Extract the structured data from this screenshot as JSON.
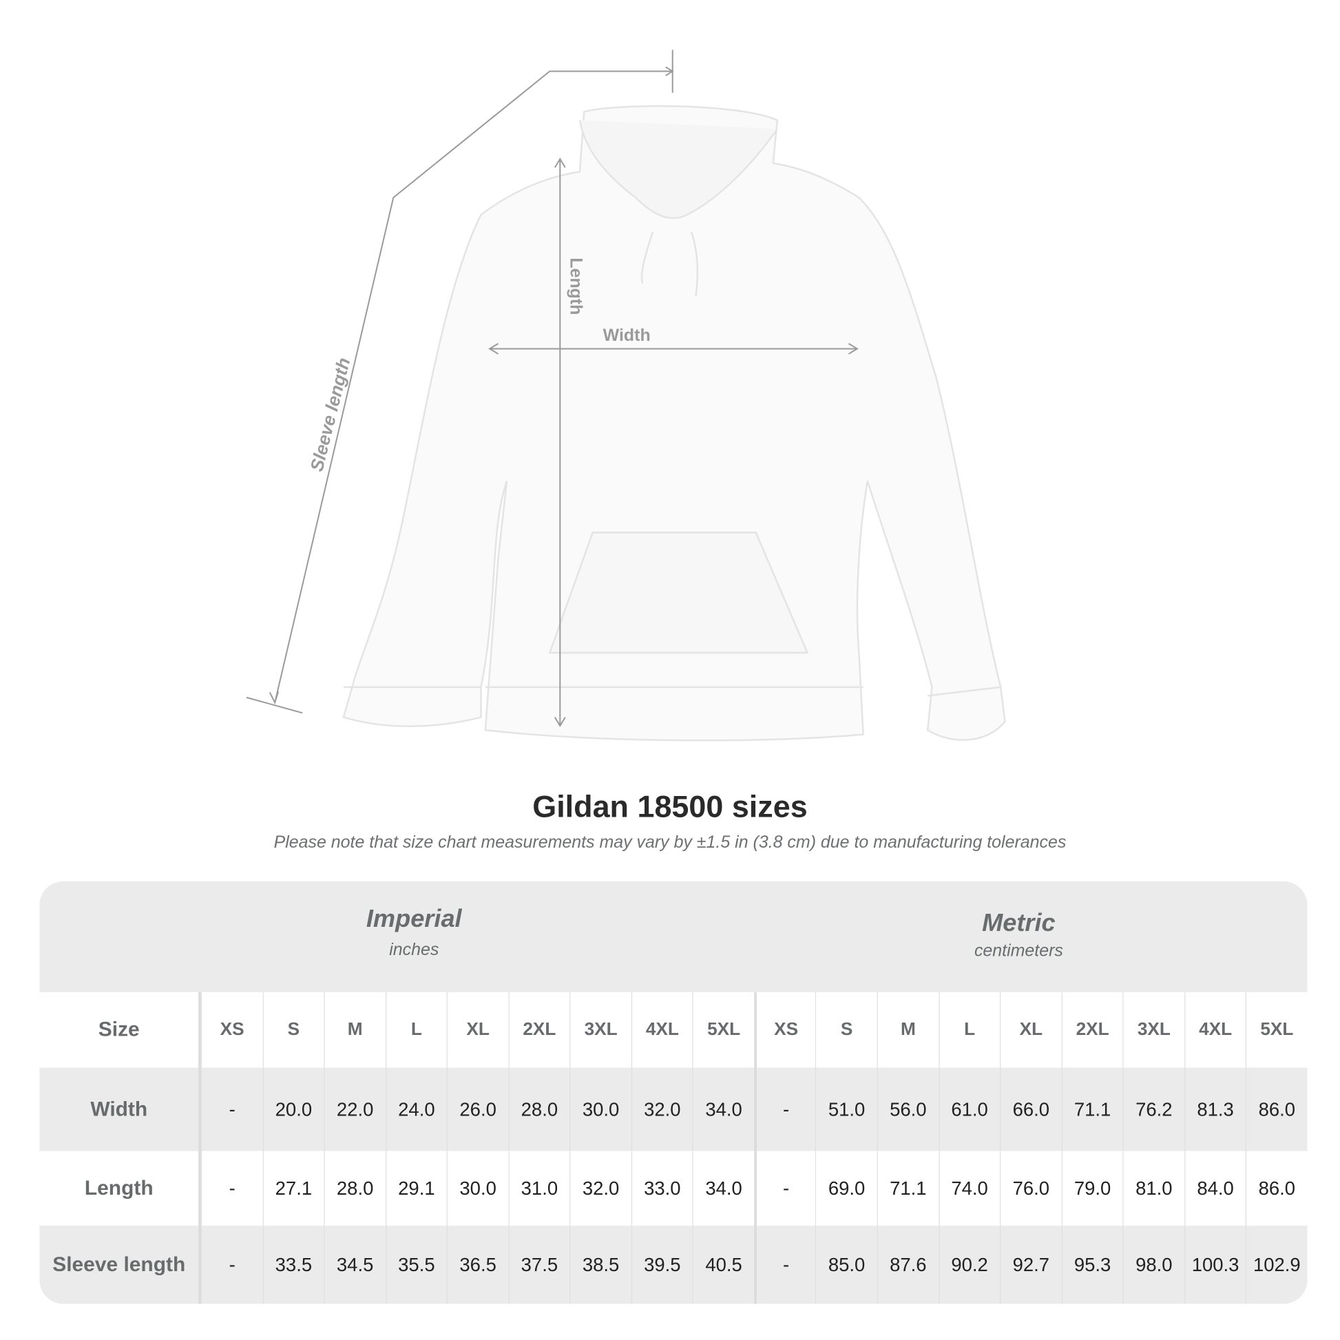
{
  "diagram": {
    "labels": {
      "sleeve": "Sleeve length",
      "length": "Length",
      "width": "Width"
    }
  },
  "title": "Gildan 18500 sizes",
  "note": "Please note that size chart measurements may vary by ±1.5 in (3.8 cm) due to manufacturing tolerances",
  "table": {
    "imperial": {
      "heading": "Imperial",
      "unit": "inches"
    },
    "metric": {
      "heading": "Metric",
      "unit": "centimeters"
    },
    "size_label": "Size",
    "sizes": [
      "XS",
      "S",
      "M",
      "L",
      "XL",
      "2XL",
      "3XL",
      "4XL",
      "5XL"
    ],
    "rows": [
      {
        "label": "Width",
        "imperial": [
          "-",
          "20.0",
          "22.0",
          "24.0",
          "26.0",
          "28.0",
          "30.0",
          "32.0",
          "34.0"
        ],
        "metric": [
          "-",
          "51.0",
          "56.0",
          "61.0",
          "66.0",
          "71.1",
          "76.2",
          "81.3",
          "86.0"
        ]
      },
      {
        "label": "Length",
        "imperial": [
          "-",
          "27.1",
          "28.0",
          "29.1",
          "30.0",
          "31.0",
          "32.0",
          "33.0",
          "34.0"
        ],
        "metric": [
          "-",
          "69.0",
          "71.1",
          "74.0",
          "76.0",
          "79.0",
          "81.0",
          "84.0",
          "86.0"
        ]
      },
      {
        "label": "Sleeve length",
        "imperial": [
          "-",
          "33.5",
          "34.5",
          "35.5",
          "36.5",
          "37.5",
          "38.5",
          "39.5",
          "40.5"
        ],
        "metric": [
          "-",
          "85.0",
          "87.6",
          "90.2",
          "92.7",
          "95.3",
          "98.0",
          "100.3",
          "102.9"
        ]
      }
    ]
  },
  "colors": {
    "band": "#ebebeb",
    "header_text": "#676b6c",
    "value_text": "#222222",
    "dimension_lines": "#9a9a9a"
  }
}
